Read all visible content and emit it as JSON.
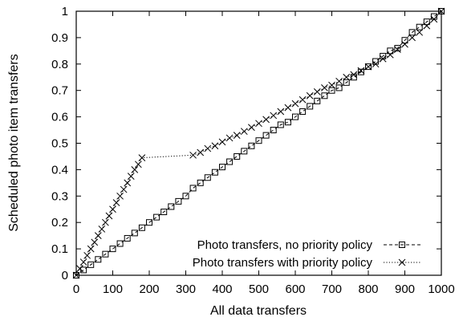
{
  "chart_data": {
    "type": "line",
    "title": "",
    "xlabel": "All data transfers",
    "ylabel": "Scheduled photo item transfers",
    "xlim": [
      0,
      1000
    ],
    "ylim": [
      0,
      1
    ],
    "xticks": [
      0,
      100,
      200,
      300,
      400,
      500,
      600,
      700,
      800,
      900,
      1000
    ],
    "yticks": [
      0,
      0.1,
      0.2,
      0.3,
      0.4,
      0.5,
      0.6,
      0.7,
      0.8,
      0.9,
      1
    ],
    "grid": false,
    "legend_position": "bottom-right",
    "series": [
      {
        "name": "Photo transfers, no priority policy",
        "marker": "square",
        "line_style": "dashed",
        "x": [
          0,
          20,
          40,
          60,
          80,
          100,
          120,
          140,
          160,
          180,
          200,
          220,
          240,
          260,
          280,
          300,
          320,
          340,
          360,
          380,
          400,
          420,
          440,
          460,
          480,
          500,
          520,
          540,
          560,
          580,
          600,
          620,
          640,
          660,
          680,
          700,
          720,
          740,
          760,
          780,
          800,
          820,
          840,
          860,
          880,
          900,
          920,
          940,
          960,
          980,
          1000
        ],
        "y": [
          0,
          0.02,
          0.04,
          0.06,
          0.08,
          0.1,
          0.12,
          0.14,
          0.16,
          0.18,
          0.2,
          0.22,
          0.24,
          0.26,
          0.28,
          0.3,
          0.33,
          0.35,
          0.37,
          0.39,
          0.41,
          0.43,
          0.45,
          0.47,
          0.49,
          0.51,
          0.53,
          0.55,
          0.57,
          0.58,
          0.6,
          0.62,
          0.64,
          0.66,
          0.68,
          0.7,
          0.71,
          0.73,
          0.75,
          0.77,
          0.79,
          0.81,
          0.83,
          0.85,
          0.86,
          0.89,
          0.92,
          0.94,
          0.96,
          0.98,
          1.0
        ]
      },
      {
        "name": "Photo transfers with priority policy",
        "marker": "cross",
        "line_style": "dotted",
        "x": [
          0,
          10,
          20,
          30,
          40,
          50,
          60,
          70,
          80,
          90,
          100,
          110,
          120,
          130,
          140,
          150,
          160,
          170,
          180,
          320,
          340,
          360,
          380,
          400,
          420,
          440,
          460,
          480,
          500,
          520,
          540,
          560,
          580,
          600,
          620,
          640,
          660,
          680,
          700,
          720,
          740,
          760,
          780,
          800,
          820,
          840,
          860,
          880,
          900,
          920,
          940,
          960,
          980,
          1000
        ],
        "y": [
          0.0,
          0.025,
          0.05,
          0.075,
          0.1,
          0.125,
          0.15,
          0.175,
          0.2,
          0.225,
          0.25,
          0.275,
          0.3,
          0.325,
          0.35,
          0.375,
          0.4,
          0.42,
          0.445,
          0.455,
          0.465,
          0.48,
          0.49,
          0.505,
          0.52,
          0.53,
          0.545,
          0.56,
          0.575,
          0.59,
          0.605,
          0.62,
          0.635,
          0.65,
          0.665,
          0.68,
          0.695,
          0.71,
          0.72,
          0.735,
          0.75,
          0.76,
          0.775,
          0.79,
          0.8,
          0.82,
          0.835,
          0.855,
          0.875,
          0.9,
          0.92,
          0.945,
          0.97,
          1.0
        ]
      }
    ]
  }
}
